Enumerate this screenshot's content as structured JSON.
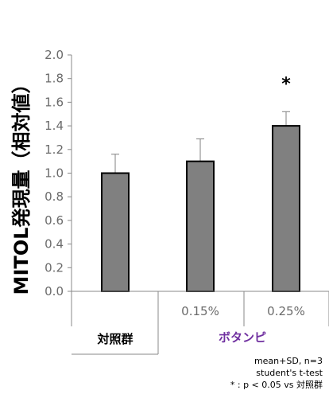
{
  "chart_data": {
    "type": "bar",
    "ylabel": "MITOL発現量（相対値）",
    "ylim": [
      0,
      2
    ],
    "yticks": [
      "0.0",
      "0.2",
      "0.4",
      "0.6",
      "0.8",
      "1.0",
      "1.2",
      "1.4",
      "1.6",
      "1.8",
      "2.0"
    ],
    "categories": [
      "",
      "0.15%",
      "0.25%"
    ],
    "values": [
      1.0,
      1.1,
      1.4
    ],
    "errors": [
      0.16,
      0.19,
      0.12
    ],
    "significance": [
      "",
      "",
      "*"
    ],
    "groups": [
      {
        "label": "対照群",
        "color": "#000000"
      },
      {
        "label": "ボタンピ",
        "color": "#7030a0"
      }
    ],
    "bar_color": "#808080",
    "grid": false,
    "notes": [
      "mean+SD, n=3",
      "student's t-test",
      "* : p < 0.05 vs 対照群"
    ]
  }
}
